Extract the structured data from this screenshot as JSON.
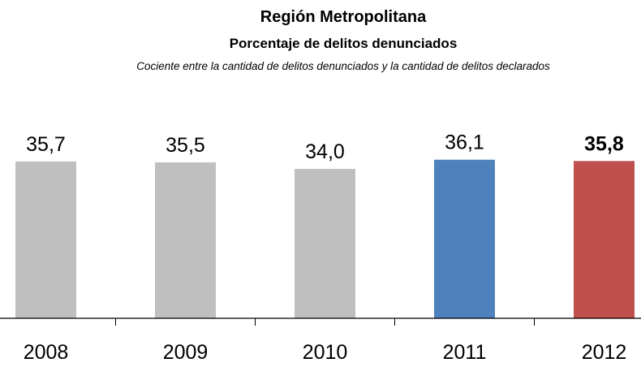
{
  "chart_data": {
    "type": "bar",
    "title": "Región Metropolitana",
    "subtitle": "Porcentaje de delitos denunciados",
    "note": "Cociente entre la cantidad de delitos denunciados y la cantidad de delitos declarados",
    "categories": [
      "2008",
      "2009",
      "2010",
      "2011",
      "2012"
    ],
    "values": [
      35.7,
      35.5,
      34.0,
      36.1,
      35.8
    ],
    "data_labels": [
      "35,7",
      "35,5",
      "34,0",
      "36,1",
      "35,8"
    ],
    "bold_labels": [
      false,
      false,
      false,
      false,
      true
    ],
    "colors": [
      "#bfbfbf",
      "#bfbfbf",
      "#bfbfbf",
      "#4f81bd",
      "#c0504d"
    ],
    "xlabel": "",
    "ylabel": "",
    "ylim": [
      0,
      40
    ],
    "grid": false,
    "legend": "none"
  }
}
